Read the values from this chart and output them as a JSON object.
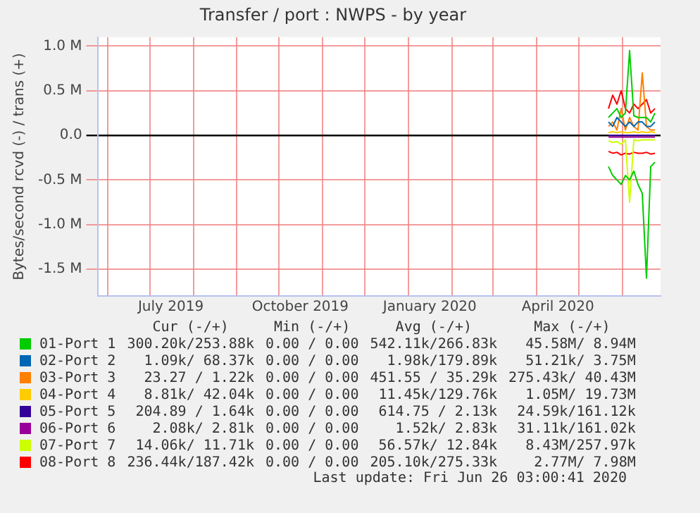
{
  "chart_data": {
    "type": "line",
    "title": "Transfer / port : NWPS - by year",
    "ylabel": "Bytes/second rcvd (-) / trans (+)",
    "x": [
      "2020-05-22",
      "2020-05-25",
      "2020-05-28",
      "2020-05-31",
      "2020-06-03",
      "2020-06-06",
      "2020-06-09",
      "2020-06-12",
      "2020-06-15",
      "2020-06-18",
      "2020-06-21",
      "2020-06-24"
    ],
    "xlim": [
      "2019-05-25",
      "2020-06-28"
    ],
    "xticks": [
      {
        "value": "2019-06-01",
        "label": null
      },
      {
        "value": "2019-07-01",
        "label": null
      },
      {
        "value": "2019-07-16",
        "label": "July 2019"
      },
      {
        "value": "2019-08-01",
        "label": null
      },
      {
        "value": "2019-09-01",
        "label": null
      },
      {
        "value": "2019-10-01",
        "label": null
      },
      {
        "value": "2019-10-16",
        "label": "October 2019"
      },
      {
        "value": "2019-11-01",
        "label": null
      },
      {
        "value": "2019-12-01",
        "label": null
      },
      {
        "value": "2020-01-01",
        "label": null
      },
      {
        "value": "2020-01-16",
        "label": "January 2020"
      },
      {
        "value": "2020-02-01",
        "label": null
      },
      {
        "value": "2020-03-01",
        "label": null
      },
      {
        "value": "2020-04-01",
        "label": null
      },
      {
        "value": "2020-04-16",
        "label": "April 2020"
      },
      {
        "value": "2020-05-01",
        "label": null
      },
      {
        "value": "2020-06-01",
        "label": null
      }
    ],
    "ylim": [
      -1800000,
      1100000
    ],
    "yticks": [
      {
        "value": -1500000,
        "label": "-1.5 M"
      },
      {
        "value": -1000000,
        "label": "-1.0 M"
      },
      {
        "value": -500000,
        "label": "-0.5 M"
      },
      {
        "value": 0,
        "label": "0.0"
      },
      {
        "value": 500000,
        "label": "0.5 M"
      },
      {
        "value": 1000000,
        "label": "1.0 M"
      }
    ],
    "grid": true,
    "legend": "bottom",
    "marker": "none",
    "line_style": "solid",
    "series": [
      {
        "name": "01-Port 1",
        "color": "#00cc00",
        "values": [
          200000,
          250000,
          300000,
          200000,
          250000,
          950000,
          220000,
          200000,
          200000,
          200000,
          150000,
          250000
        ]
      },
      {
        "color": "#00cc00",
        "values": [
          -350000,
          -450000,
          -500000,
          -550000,
          -450000,
          -500000,
          -400000,
          -550000,
          -650000,
          -1600000,
          -350000,
          -300000
        ]
      },
      {
        "name": "02-Port 2",
        "color": "#0066b3",
        "values": [
          150000,
          100000,
          200000,
          150000,
          100000,
          150000,
          100000,
          150000,
          150000,
          100000,
          100000,
          150000
        ]
      },
      {
        "name": "03-Port 3",
        "color": "#ff8000",
        "values": [
          100000,
          150000,
          60000,
          300000,
          60000,
          200000,
          100000,
          60000,
          700000,
          100000,
          60000,
          60000
        ]
      },
      {
        "name": "04-Port 4",
        "color": "#ffcc00",
        "values": [
          30000,
          40000,
          30000,
          40000,
          30000,
          30000,
          40000,
          30000,
          40000,
          30000,
          40000,
          30000
        ]
      },
      {
        "name": "05-Port 5",
        "color": "#330099",
        "values": [
          0,
          0,
          0,
          0,
          0,
          0,
          0,
          0,
          0,
          0,
          0,
          0
        ]
      },
      {
        "name": "06-Port 6",
        "color": "#990099",
        "values": [
          -20000,
          -20000,
          -20000,
          -20000,
          -20000,
          -20000,
          -20000,
          -20000,
          -20000,
          -20000,
          -20000,
          -20000
        ]
      },
      {
        "name": "07-Port 7",
        "color": "#ccff00",
        "values": [
          -60000,
          -80000,
          -70000,
          -100000,
          -50000,
          -750000,
          -50000,
          -60000,
          -50000,
          -50000,
          -50000,
          -50000
        ]
      },
      {
        "name": "08-Port 8",
        "color": "#ff0000",
        "values": [
          300000,
          450000,
          350000,
          500000,
          300000,
          250000,
          350000,
          300000,
          350000,
          400000,
          250000,
          300000
        ]
      },
      {
        "color": "#ff0000",
        "values": [
          -180000,
          -200000,
          -190000,
          -220000,
          -200000,
          -210000,
          -190000,
          -200000,
          -200000,
          -190000,
          -210000,
          -200000
        ]
      }
    ],
    "annotations": [
      "Cur (-/+)",
      "Min (-/+)",
      "Avg (-/+)",
      "Max (-/+)",
      "300.20k/253.88k",
      "0.00 / 0.00",
      "542.11k/266.83k",
      "45.58M/ 8.94M",
      "1.09k/ 68.37k",
      "0.00 / 0.00",
      "1.98k/179.89k",
      "51.21k/ 3.75M",
      "23.27 / 1.22k",
      "0.00 / 0.00",
      "451.55 / 35.29k",
      "275.43k/ 40.43M",
      "8.81k/ 42.04k",
      "0.00 / 0.00",
      "11.45k/129.76k",
      "1.05M/ 19.73M",
      "204.89 / 1.64k",
      "0.00 / 0.00",
      "614.75 / 2.13k",
      "24.59k/161.12k",
      "2.08k/ 2.81k",
      "0.00 / 0.00",
      "1.52k/ 2.83k",
      "31.11k/161.02k",
      "14.06k/ 11.71k",
      "0.00 / 0.00",
      "56.57k/ 12.84k",
      "8.43M/257.97k",
      "236.44k/187.42k",
      "0.00 / 0.00",
      "205.10k/275.33k",
      "2.77M/ 7.98M",
      "Last update: Fri Jun 26 03:00:41 2020"
    ]
  }
}
